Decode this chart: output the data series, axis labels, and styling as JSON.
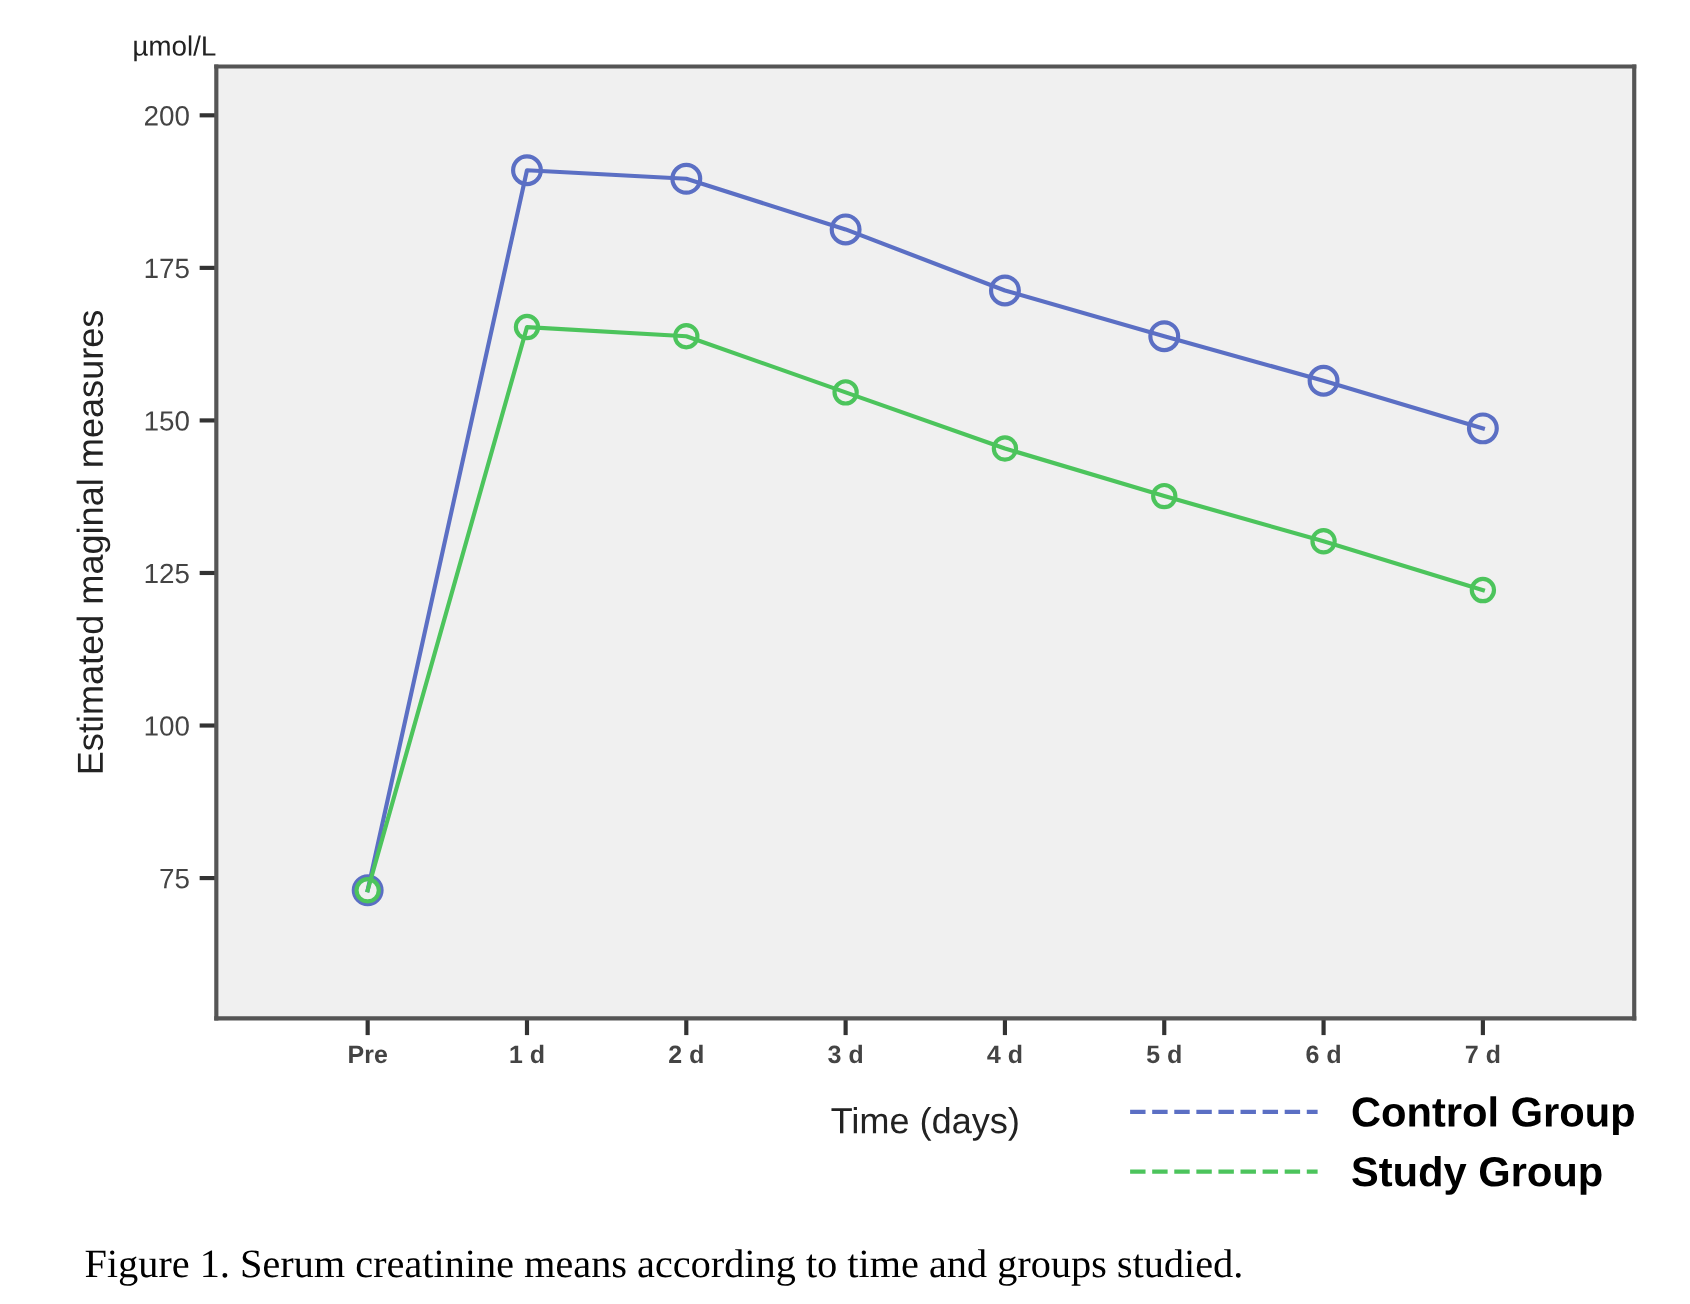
{
  "chart_data": {
    "type": "line",
    "categories": [
      "Pre",
      "1 d",
      "2 d",
      "3 d",
      "4 d",
      "5 d",
      "6 d",
      "7 d"
    ],
    "series": [
      {
        "name": "Control Group",
        "color": "#5b6fc4",
        "values": [
          73,
          191,
          189.6,
          181.3,
          171.3,
          163.8,
          156.5,
          148.7
        ]
      },
      {
        "name": "Study Group",
        "color": "#4cc45c",
        "values": [
          73,
          165.3,
          163.8,
          154.6,
          145.4,
          137.6,
          130.2,
          122.2
        ]
      }
    ],
    "ylabel": "Estimated maginal measures",
    "xlabel": "Time (days)",
    "annotations": [
      "µmol/L",
      "Figure 1. Serum creatinine means according to time and groups studied."
    ],
    "ylim": [
      52,
      208
    ],
    "yticks": [
      75,
      100,
      125,
      150,
      175,
      200
    ],
    "grid": false,
    "legend": "bottom right",
    "marker": "circle",
    "line_style": "solid"
  }
}
